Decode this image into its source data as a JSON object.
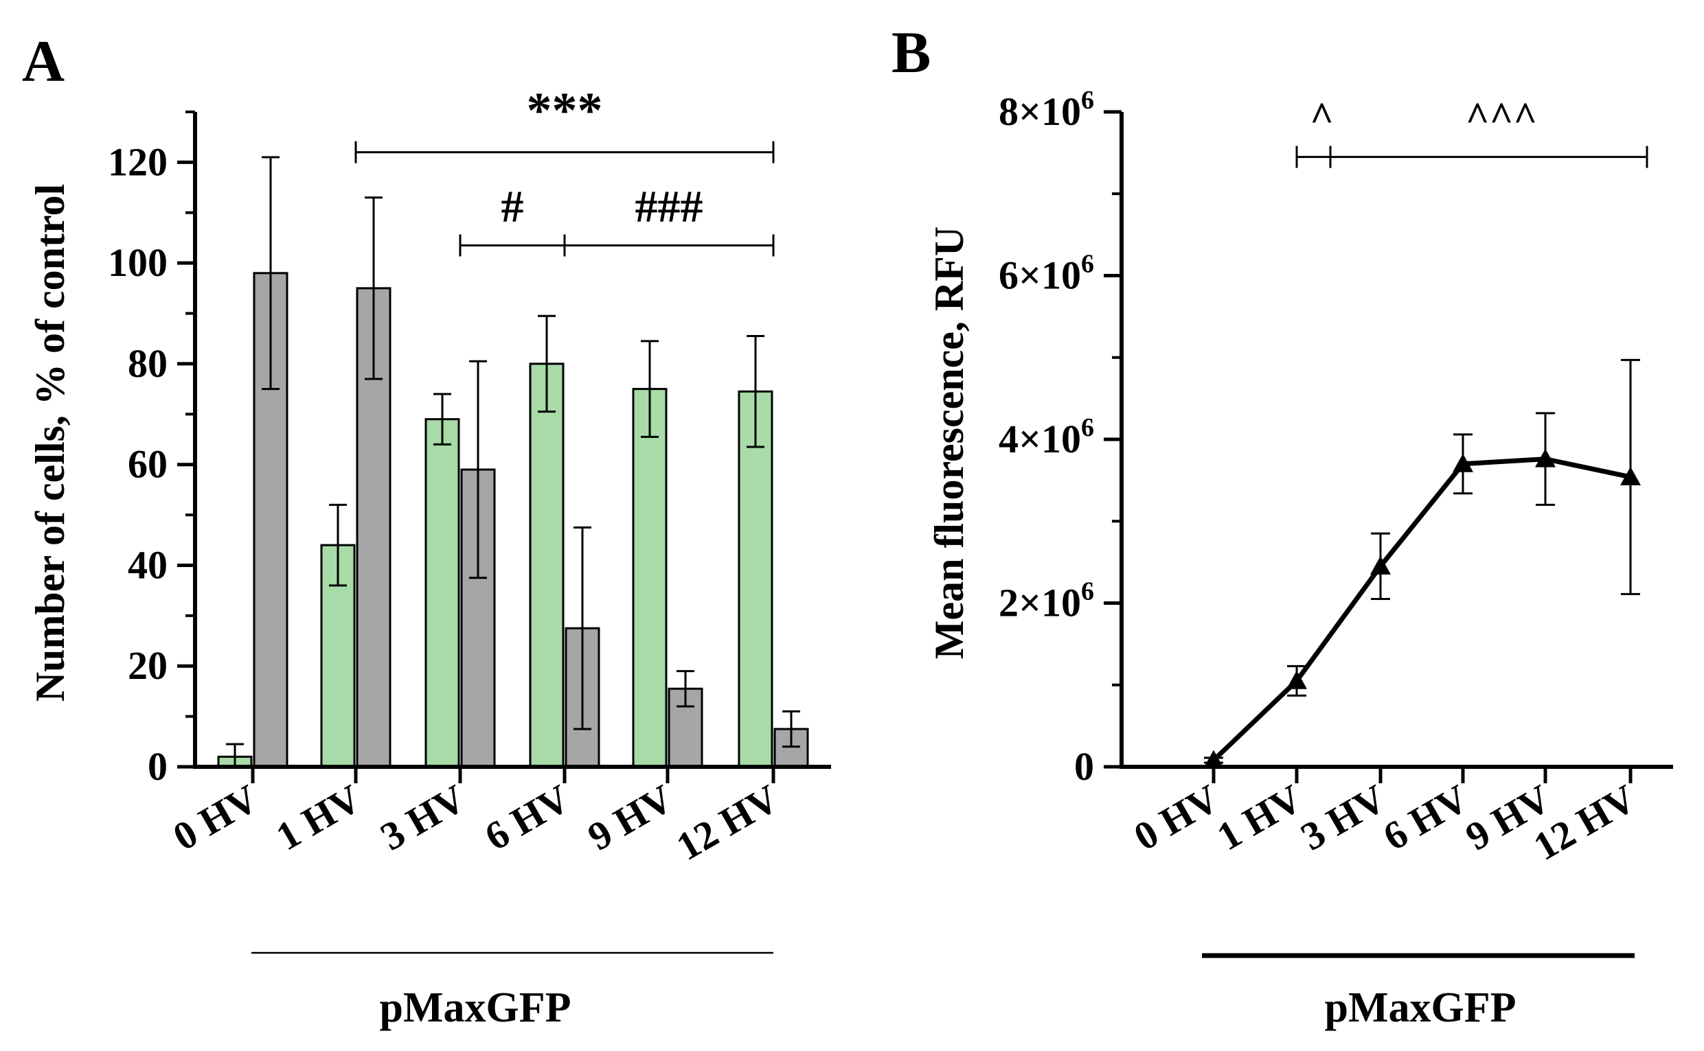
{
  "panels": {
    "a": {
      "letter": "A"
    },
    "b": {
      "letter": "B"
    }
  },
  "colors": {
    "green_series": "#a8dba8",
    "gray_series": "#a6a6a6",
    "ink": "#000000"
  },
  "chart_data": [
    {
      "panel": "A",
      "type": "bar",
      "ylabel": "Number of cells, % of control",
      "xlabel": "",
      "group_label": "pMaxGFP",
      "categories": [
        "0 HV",
        "1 HV",
        "3 HV",
        "6 HV",
        "9 HV",
        "12 HV"
      ],
      "ylim": [
        0,
        130
      ],
      "yticks": [
        "0",
        "20",
        "40",
        "60",
        "80",
        "100",
        "120"
      ],
      "grid": false,
      "series": [
        {
          "color": "#a8dba8",
          "values": [
            2,
            44,
            69,
            80,
            75,
            74.5
          ],
          "error": [
            2.5,
            8,
            5,
            9.5,
            9.5,
            11
          ]
        },
        {
          "color": "#a6a6a6",
          "values": [
            98,
            95,
            59,
            27.5,
            15.5,
            7.5
          ],
          "error": [
            23,
            18,
            21.5,
            20,
            3.5,
            3.5
          ]
        }
      ],
      "annotations": [
        {
          "text": "***",
          "from": "1 HV",
          "to": "12 HV",
          "y": 122
        },
        {
          "text": "#",
          "from": "3 HV",
          "to": "6 HV",
          "y": 103.5
        },
        {
          "text": "###",
          "from": "6 HV",
          "to": "12 HV",
          "y": 103.5
        }
      ]
    },
    {
      "panel": "B",
      "type": "line",
      "ylabel": "Mean fluorescence, RFU",
      "xlabel": "",
      "group_label": "pMaxGFP",
      "categories": [
        "0 HV",
        "1 HV",
        "3 HV",
        "6 HV",
        "9 HV",
        "12 HV"
      ],
      "ylim": [
        0,
        8000000
      ],
      "yticks": [
        0,
        2000000,
        4000000,
        6000000,
        8000000
      ],
      "ytick_mantissa": "×10",
      "ytick_exponent": "6",
      "ytick_zero": "0",
      "grid": false,
      "marker": "triangle",
      "series": [
        {
          "color": "#000000",
          "values": [
            80000,
            1050000,
            2450000,
            3700000,
            3760000,
            3540000
          ],
          "error": [
            30000,
            180000,
            400000,
            360000,
            560000,
            1430000
          ]
        }
      ],
      "annotations": [
        {
          "text": "^",
          "from": "1 HV",
          "to": "between 1 HV and 3 HV",
          "y": 7450000
        },
        {
          "text": "^^^",
          "from": "between 1 HV and 3 HV",
          "to": "12 HV",
          "y": 7450000
        }
      ]
    }
  ]
}
